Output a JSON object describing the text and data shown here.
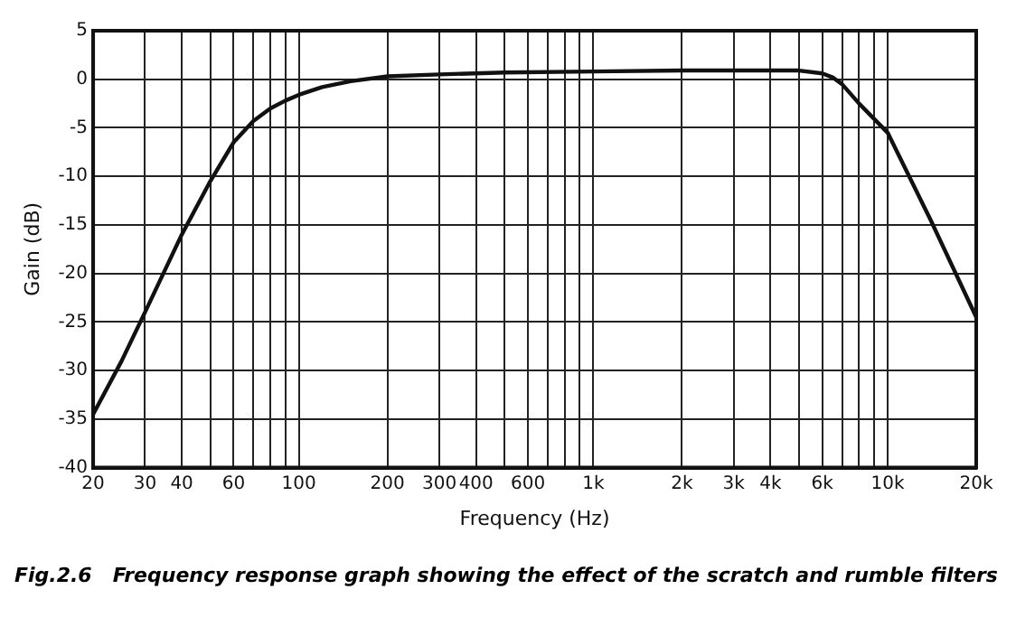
{
  "chart_data": {
    "type": "line",
    "xlabel": "Frequency (Hz)",
    "ylabel": "Gain (dB)",
    "log": "x",
    "grid": true,
    "legend": false,
    "marker": "none",
    "line_style": "solid",
    "annotations": [
      "Fig.2.6   Frequency response graph showing the effect of the scratch and rumble filters"
    ],
    "xlim": [
      20,
      20000
    ],
    "ylim": [
      -40,
      5
    ],
    "xticks": [
      20,
      30,
      40,
      {
        "value": 50,
        "label": null
      },
      60,
      {
        "value": 70,
        "label": null
      },
      {
        "value": 80,
        "label": null
      },
      {
        "value": 90,
        "label": null
      },
      100,
      200,
      300,
      400,
      {
        "value": 500,
        "label": null
      },
      600,
      {
        "value": 700,
        "label": null
      },
      {
        "value": 800,
        "label": null
      },
      {
        "value": 900,
        "label": null
      },
      {
        "value": 1000,
        "label": "1k"
      },
      {
        "value": 2000,
        "label": "2k"
      },
      {
        "value": 3000,
        "label": "3k"
      },
      {
        "value": 4000,
        "label": "4k"
      },
      {
        "value": 5000,
        "label": null
      },
      {
        "value": 6000,
        "label": "6k"
      },
      {
        "value": 7000,
        "label": null
      },
      {
        "value": 8000,
        "label": null
      },
      {
        "value": 9000,
        "label": null
      },
      {
        "value": 10000,
        "label": "10k"
      },
      {
        "value": 20000,
        "label": "20k"
      }
    ],
    "yticks": [
      -40,
      -35,
      -30,
      -25,
      -20,
      -15,
      -10,
      -5,
      0,
      5
    ],
    "series": [
      {
        "color": "#111111",
        "x": [
          20,
          25,
          30,
          40,
          50,
          60,
          70,
          80,
          90,
          100,
          120,
          150,
          200,
          300,
          500,
          1000,
          2000,
          5000,
          6000,
          6500,
          7000,
          8000,
          10000,
          14000,
          20000
        ],
        "values": [
          -34.5,
          -29,
          -24,
          -16,
          -10.5,
          -6.5,
          -4.3,
          -3,
          -2.2,
          -1.6,
          -0.8,
          -0.2,
          0.3,
          0.5,
          0.7,
          0.8,
          0.9,
          0.9,
          0.6,
          0.2,
          -0.5,
          -2.5,
          -5.5,
          -14.5,
          -24.5
        ]
      }
    ]
  }
}
